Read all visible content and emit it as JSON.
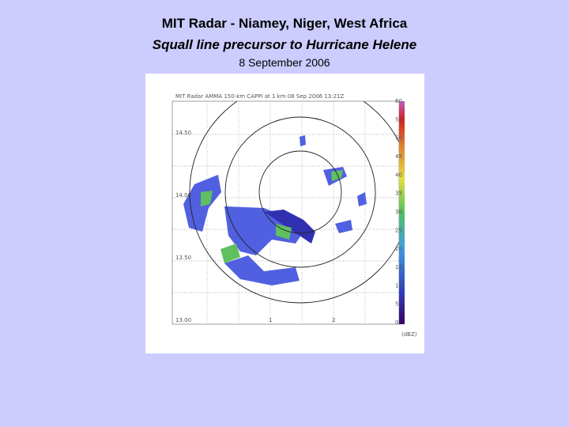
{
  "header": {
    "title": "MIT Radar - Niamey, Niger, West Africa",
    "subtitle": "Squall line precursor to Hurricane Helene",
    "date": "8 September 2006"
  },
  "image": {
    "caption": "MIT Radar AMMA 150-km CAPPI at 1 km 08 Sep 2006 13:21Z",
    "colorbar_labels": [
      "60",
      "55",
      "50",
      "45",
      "40",
      "35",
      "30",
      "25",
      "20",
      "15",
      "10",
      "5",
      "0"
    ],
    "colorbar_unit": "(dBZ)",
    "y_labels": [
      "14.50",
      "14.00",
      "13.50",
      "13.00"
    ],
    "x_labels": [
      "1",
      "2"
    ]
  }
}
